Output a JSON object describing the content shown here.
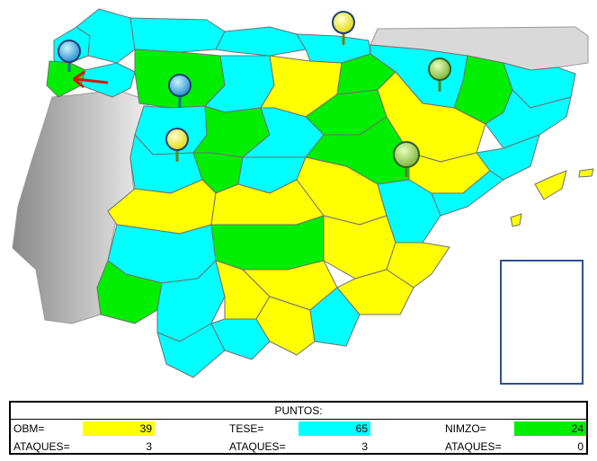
{
  "colors": {
    "obm": "#ffff00",
    "tese": "#00ffff",
    "nimzo": "#00ee00",
    "sea": "#ffffff",
    "portugal": "#bbbbbb",
    "france": "#d9d9d9",
    "border": "#777777",
    "arrow": "#e01010"
  },
  "legend_map": {
    "yellow": "OBM",
    "cyan": "TESE",
    "green": "NIMZO"
  },
  "pins": [
    {
      "name": "pin-galicia",
      "color": "blue"
    },
    {
      "name": "pin-leon",
      "color": "blue"
    },
    {
      "name": "pin-zamora",
      "color": "yellow"
    },
    {
      "name": "pin-cantabria",
      "color": "yellow"
    },
    {
      "name": "pin-navarra",
      "color": "green"
    },
    {
      "name": "pin-zaragoza",
      "color": "green"
    }
  ],
  "score": {
    "title": "PUNTOS:",
    "obm_label": "OBM=",
    "obm_points": "39",
    "tese_label": "TESE=",
    "tese_points": "65",
    "nimzo_label": "NIMZO=",
    "nimzo_points": "24",
    "attacks_label": "ATAQUES=",
    "obm_attacks": "3",
    "tese_attacks": "3",
    "nimzo_attacks": "0"
  }
}
